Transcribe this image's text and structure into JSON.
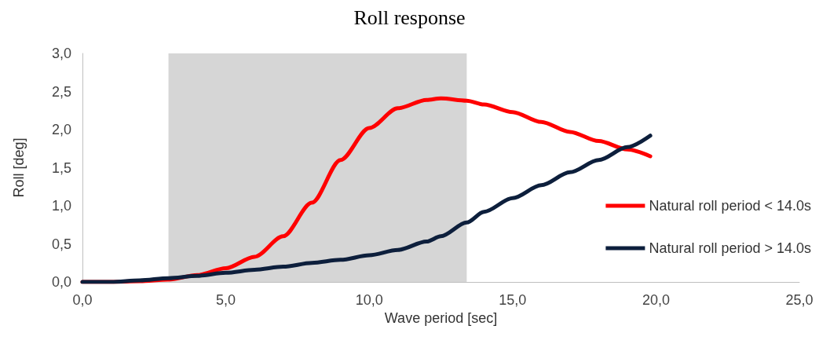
{
  "chart_data": {
    "type": "line",
    "title": "Roll response",
    "xlabel": "Wave period [sec]",
    "ylabel": "Roll [deg]",
    "xlim": [
      0,
      25
    ],
    "xticks": [
      {
        "value": 0,
        "label": "0,0"
      },
      {
        "value": 5,
        "label": "5,0"
      },
      {
        "value": 10,
        "label": "10,0"
      },
      {
        "value": 15,
        "label": "15,0"
      },
      {
        "value": 20,
        "label": "20,0"
      },
      {
        "value": 25,
        "label": "25,0"
      }
    ],
    "ylim": [
      0,
      3
    ],
    "yticks": [
      {
        "value": 0,
        "label": "0,0"
      },
      {
        "value": 0.5,
        "label": "0,5"
      },
      {
        "value": 1,
        "label": "1,0"
      },
      {
        "value": 1.5,
        "label": "1,5"
      },
      {
        "value": 2,
        "label": "2,0"
      },
      {
        "value": 2.5,
        "label": "2,5"
      },
      {
        "value": 3,
        "label": "3,0"
      }
    ],
    "x": [
      0,
      1,
      2,
      3,
      4,
      5,
      6,
      7,
      8,
      9,
      10,
      11,
      12,
      12.5,
      13.4,
      14,
      15,
      16,
      17,
      18,
      19,
      19.8
    ],
    "series": [
      {
        "name": "Natural roll period < 14.0s",
        "color": "#ff0000",
        "values": [
          0,
          0,
          0.01,
          0.03,
          0.09,
          0.18,
          0.33,
          0.6,
          1.04,
          1.6,
          2.02,
          2.28,
          2.39,
          2.41,
          2.38,
          2.33,
          2.23,
          2.1,
          1.97,
          1.85,
          1.74,
          1.65
        ]
      },
      {
        "name": "Natural roll period > 14.0s",
        "color": "#0d1f3c",
        "values": [
          0,
          0,
          0.02,
          0.05,
          0.08,
          0.12,
          0.16,
          0.2,
          0.25,
          0.29,
          0.35,
          0.42,
          0.53,
          0.6,
          0.78,
          0.92,
          1.1,
          1.27,
          1.44,
          1.6,
          1.77,
          1.92
        ]
      }
    ],
    "bands": [
      {
        "axis": "x",
        "from": 3,
        "to": 13.4,
        "color": "#c8c8c8"
      }
    ],
    "grid": false,
    "legend": "right",
    "marker": "none",
    "line_style": "solid"
  }
}
